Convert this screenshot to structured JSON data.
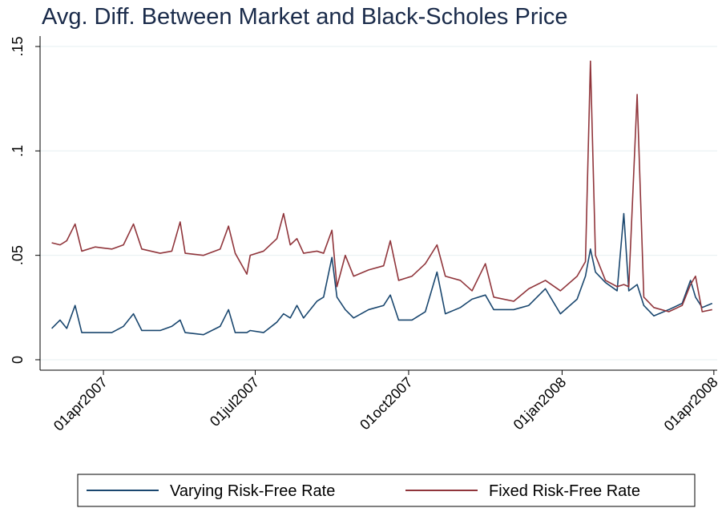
{
  "chart_data": {
    "type": "line",
    "title": "Avg. Diff. Between Market and Black-Scholes Price",
    "x": [
      "2007-03-01",
      "2007-03-06",
      "2007-03-10",
      "2007-03-15",
      "2007-03-19",
      "2007-03-27",
      "2007-04-06",
      "2007-04-13",
      "2007-04-19",
      "2007-04-24",
      "2007-05-05",
      "2007-05-12",
      "2007-05-17",
      "2007-05-20",
      "2007-05-31",
      "2007-06-10",
      "2007-06-15",
      "2007-06-19",
      "2007-06-26",
      "2007-06-28",
      "2007-07-06",
      "2007-07-14",
      "2007-07-18",
      "2007-07-22",
      "2007-07-26",
      "2007-07-30",
      "2007-08-07",
      "2007-08-11",
      "2007-08-16",
      "2007-08-19",
      "2007-08-24",
      "2007-08-29",
      "2007-09-07",
      "2007-09-16",
      "2007-09-20",
      "2007-09-25",
      "2007-10-03",
      "2007-10-11",
      "2007-10-18",
      "2007-10-23",
      "2007-11-01",
      "2007-11-08",
      "2007-11-16",
      "2007-11-21",
      "2007-12-03",
      "2007-12-12",
      "2007-12-22",
      "2007-12-31",
      "2008-01-10",
      "2008-01-15",
      "2008-01-18",
      "2008-01-21",
      "2008-01-27",
      "2008-02-03",
      "2008-02-07",
      "2008-02-10",
      "2008-02-15",
      "2008-02-19",
      "2008-02-25",
      "2008-03-05",
      "2008-03-13",
      "2008-03-18",
      "2008-03-21",
      "2008-03-25",
      "2008-03-31"
    ],
    "series": [
      {
        "name": "Varying Risk-Free Rate",
        "color": "#1a476f",
        "values": [
          0.015,
          0.019,
          0.015,
          0.026,
          0.013,
          0.013,
          0.013,
          0.016,
          0.022,
          0.014,
          0.014,
          0.016,
          0.019,
          0.013,
          0.012,
          0.016,
          0.024,
          0.013,
          0.013,
          0.014,
          0.013,
          0.018,
          0.022,
          0.02,
          0.026,
          0.02,
          0.028,
          0.03,
          0.049,
          0.03,
          0.024,
          0.02,
          0.024,
          0.026,
          0.031,
          0.019,
          0.019,
          0.023,
          0.042,
          0.022,
          0.025,
          0.029,
          0.031,
          0.024,
          0.024,
          0.026,
          0.034,
          0.022,
          0.029,
          0.04,
          0.053,
          0.042,
          0.037,
          0.033,
          0.07,
          0.033,
          0.036,
          0.026,
          0.021,
          0.024,
          0.027,
          0.038,
          0.03,
          0.025,
          0.027
        ]
      },
      {
        "name": "Fixed Risk-Free Rate",
        "color": "#90353b",
        "values": [
          0.056,
          0.055,
          0.057,
          0.065,
          0.052,
          0.054,
          0.053,
          0.055,
          0.065,
          0.053,
          0.051,
          0.052,
          0.066,
          0.051,
          0.05,
          0.053,
          0.064,
          0.051,
          0.041,
          0.05,
          0.052,
          0.058,
          0.07,
          0.055,
          0.058,
          0.051,
          0.052,
          0.051,
          0.062,
          0.035,
          0.05,
          0.04,
          0.043,
          0.045,
          0.057,
          0.038,
          0.04,
          0.046,
          0.055,
          0.04,
          0.038,
          0.033,
          0.046,
          0.03,
          0.028,
          0.034,
          0.038,
          0.033,
          0.04,
          0.047,
          0.143,
          0.05,
          0.038,
          0.035,
          0.036,
          0.035,
          0.127,
          0.03,
          0.025,
          0.023,
          0.026,
          0.036,
          0.04,
          0.023,
          0.024
        ]
      }
    ],
    "xlim": [
      "2007-02-22",
      "2008-04-03"
    ],
    "xticks": [
      {
        "value": "2007-04-01",
        "label": "01apr2007"
      },
      {
        "value": "2007-07-01",
        "label": "01jul2007"
      },
      {
        "value": "2007-10-01",
        "label": "01oct2007"
      },
      {
        "value": "2008-01-01",
        "label": "01jan2008"
      },
      {
        "value": "2008-04-01",
        "label": "01apr2008"
      }
    ],
    "ylim": [
      -0.005,
      0.155
    ],
    "yticks": [
      0,
      {
        "value": 0.05,
        "label": ".05"
      },
      {
        "value": 0.1,
        "label": ".1"
      },
      {
        "value": 0.15,
        "label": ".15"
      }
    ],
    "grid": true,
    "legend": "bottom"
  }
}
